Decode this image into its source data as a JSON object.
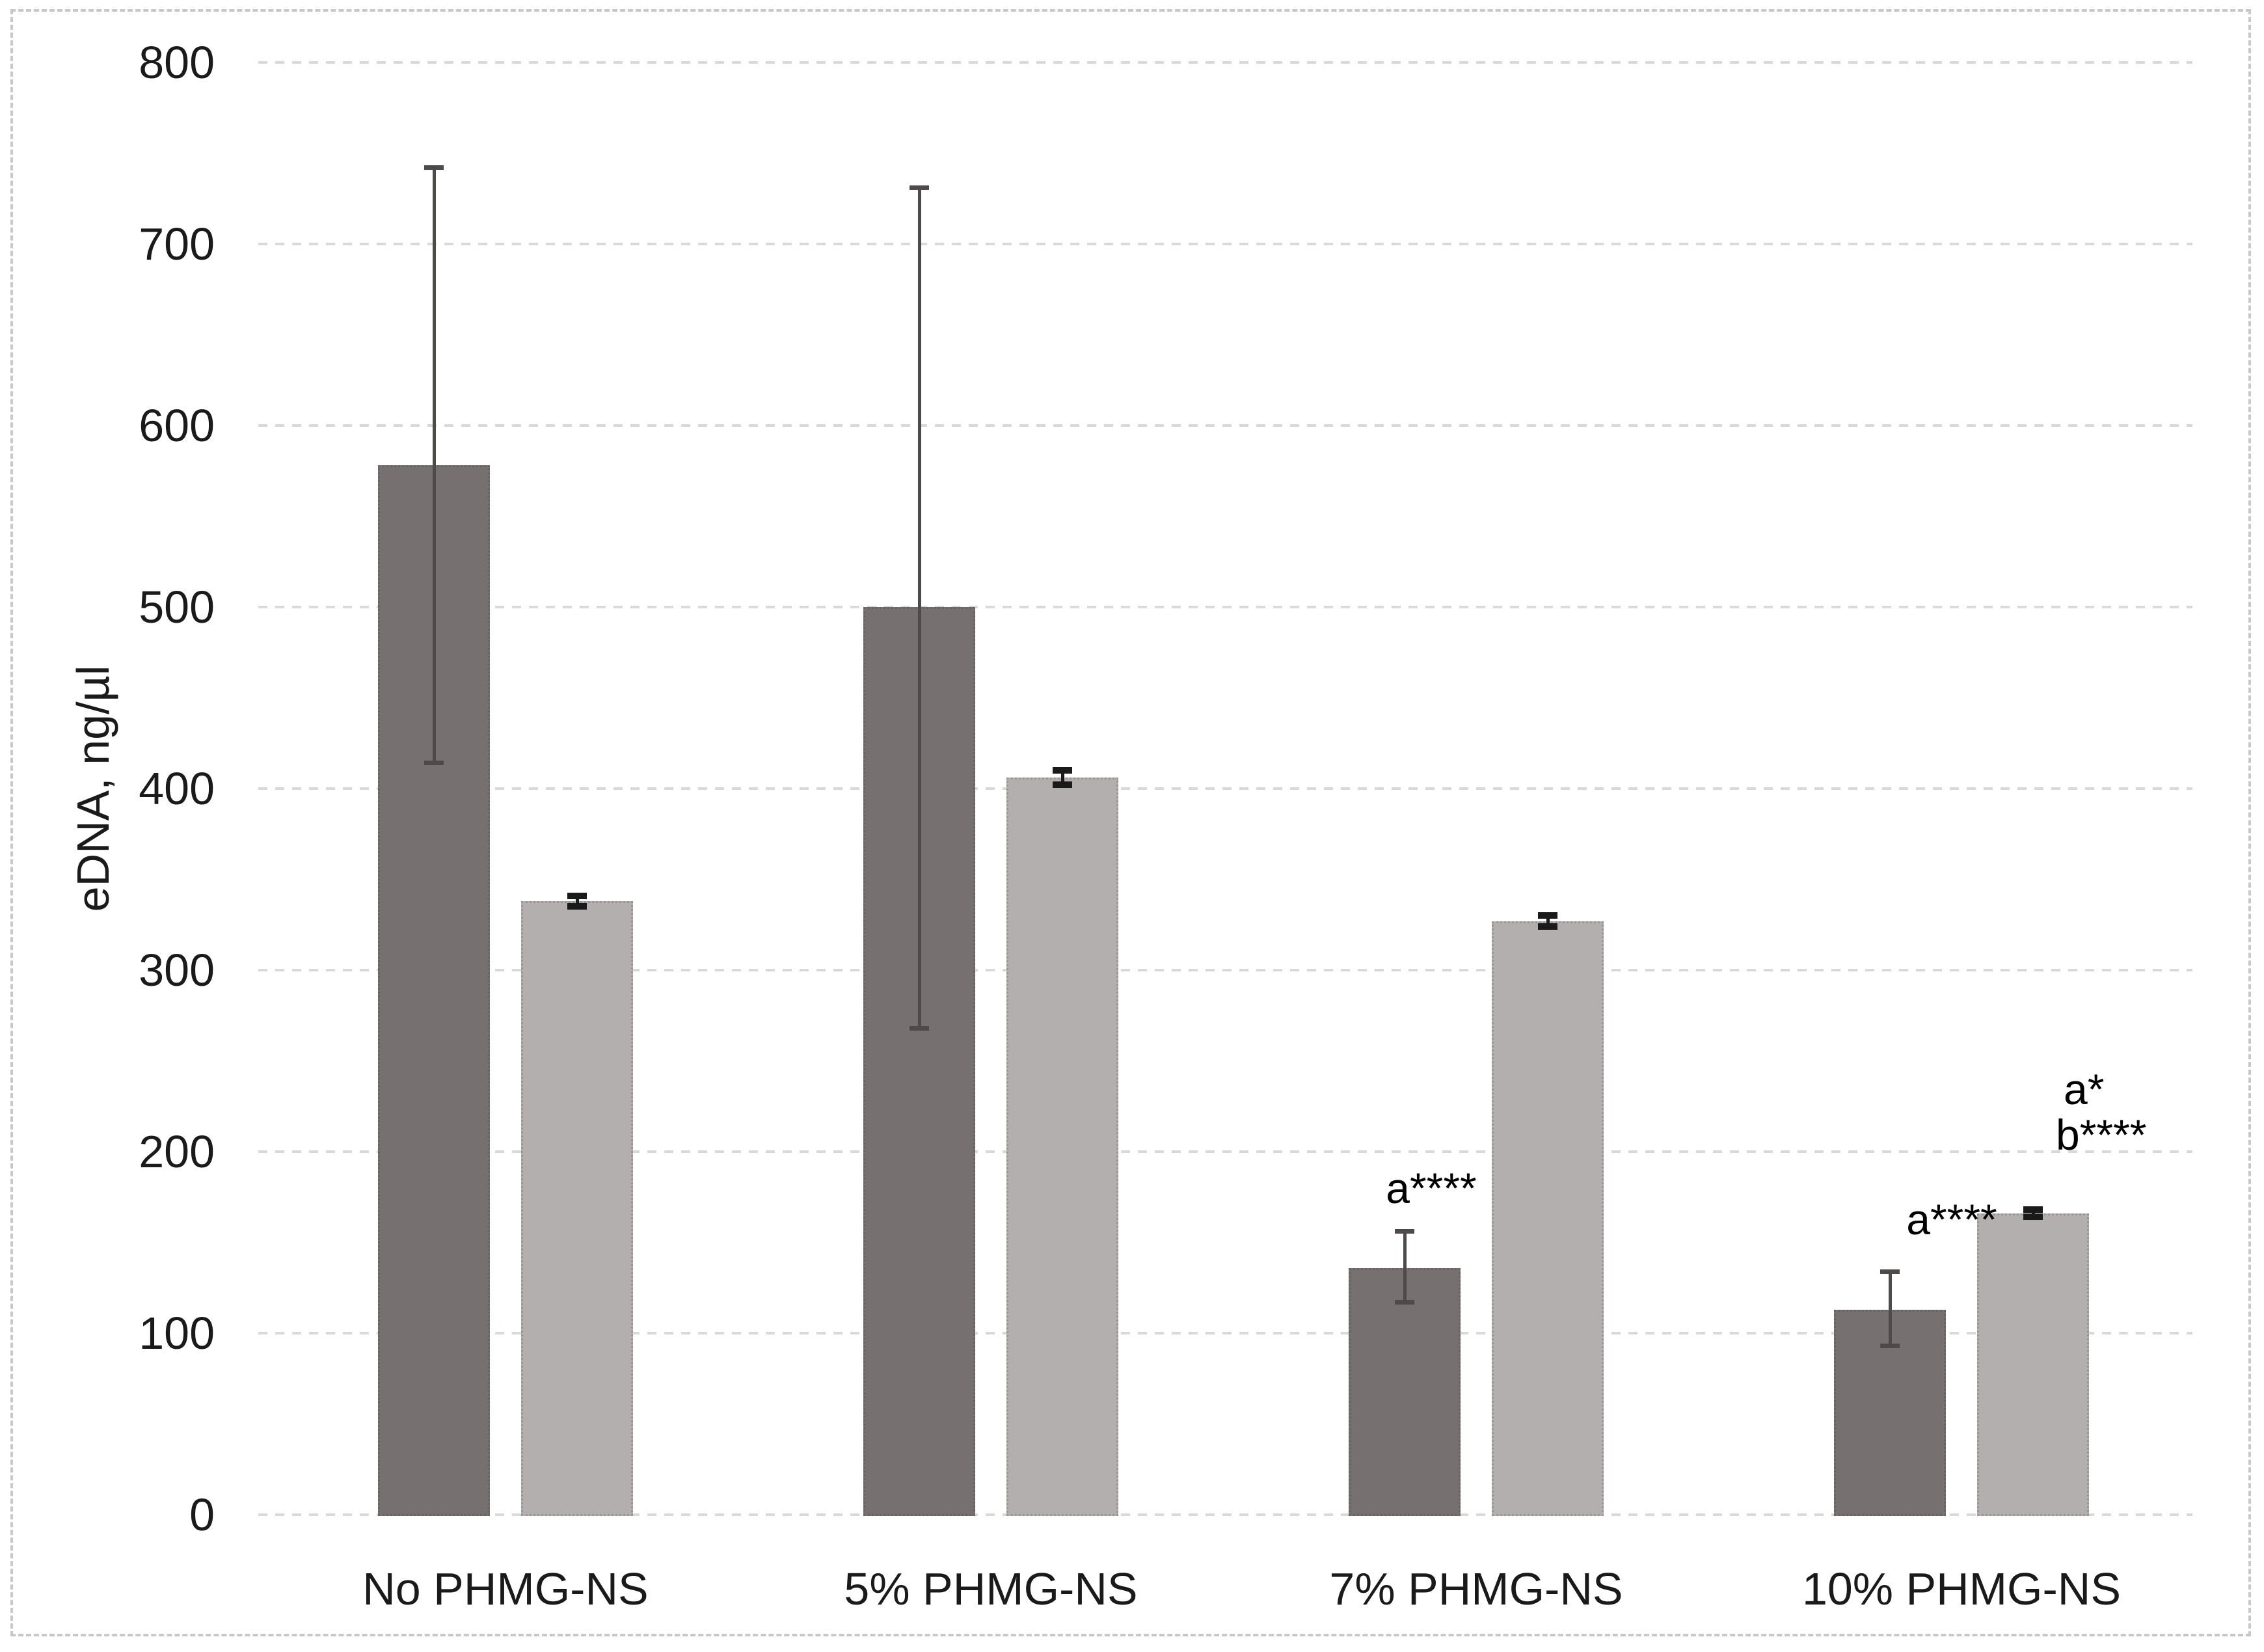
{
  "chart_data": {
    "type": "bar",
    "title": "",
    "ylabel": "eDNA, ng/µl",
    "xlabel": "",
    "ylim": [
      0,
      800
    ],
    "ytick_step": 100,
    "yticks": [
      "0",
      "100",
      "200",
      "300",
      "400",
      "500",
      "600",
      "700",
      "800"
    ],
    "grid": true,
    "legend_position": "none",
    "categories": [
      "No PHMG-NS",
      "5% PHMG-NS",
      "7% PHMG-NS",
      "10% PHMG-NS"
    ],
    "series": [
      {
        "name": "dark-gray-bars",
        "color": "#767170",
        "error_color": "#4d4a49",
        "values": [
          578,
          500,
          136,
          113
        ],
        "err_plus": [
          164,
          231,
          20,
          21
        ],
        "err_minus": [
          164,
          232,
          19,
          20
        ]
      },
      {
        "name": "light-gray-bars",
        "color": "#b3afae",
        "error_color": "#1a1a1a",
        "values": [
          338,
          406,
          327,
          166
        ],
        "err_plus": [
          3,
          4,
          3,
          2
        ],
        "err_minus": [
          3,
          4,
          3,
          2
        ]
      }
    ],
    "annotations": [
      {
        "text": "a****",
        "group": 2,
        "series": "dark-gray-bars"
      },
      {
        "text": "a****",
        "group": 3,
        "series": "dark-gray-bars"
      },
      {
        "text": "a*",
        "group": 3,
        "series": "light-gray-bars"
      },
      {
        "text": "b****",
        "group": 3,
        "series": "light-gray-bars"
      }
    ],
    "gridline_color": "#d9d9d9",
    "background_color": "#ffffff",
    "frame_color": "#cac8c7"
  }
}
